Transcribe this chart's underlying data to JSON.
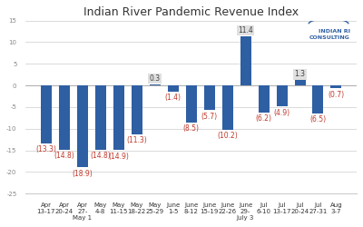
{
  "title": "Indian River Pandemic Revenue Index",
  "categories": [
    "Apr\n13-17",
    "Apr\n20-24",
    "Apr\n27-\nMay 1",
    "May\n4-8",
    "May\n11-15",
    "May\n18-22",
    "May\n25-29",
    "June\n1-5",
    "June\n8-12",
    "June\n15-19",
    "June\n22-26",
    "June\n29-\nJuly 3",
    "Jul\n6-10",
    "Jul\n13-17",
    "Jul\n20-24",
    "Jul\n27-31",
    "Aug\n3-7"
  ],
  "values": [
    -13.3,
    -14.8,
    -18.9,
    -14.8,
    -14.9,
    -11.3,
    0.3,
    -1.4,
    -8.5,
    -5.7,
    -10.2,
    11.4,
    -6.2,
    -4.9,
    1.3,
    -6.5,
    -0.7
  ],
  "bar_color_pos": "#2E5FA3",
  "bar_color_neg": "#2E5FA3",
  "label_color_pos": "#404040",
  "label_color_neg": "#C0392B",
  "label_bgcolor_pos": "#D9D9D9",
  "label_bgcolor_neg": "#FFFFFF",
  "ylim": [
    -25,
    15
  ],
  "yticks": [
    -25,
    -20,
    -15,
    -10,
    -5,
    0,
    5,
    10,
    15
  ],
  "grid_color": "#CCCCCC",
  "bg_color": "#FFFFFF",
  "title_fontsize": 9,
  "tick_fontsize": 5,
  "label_fontsize": 5.5
}
